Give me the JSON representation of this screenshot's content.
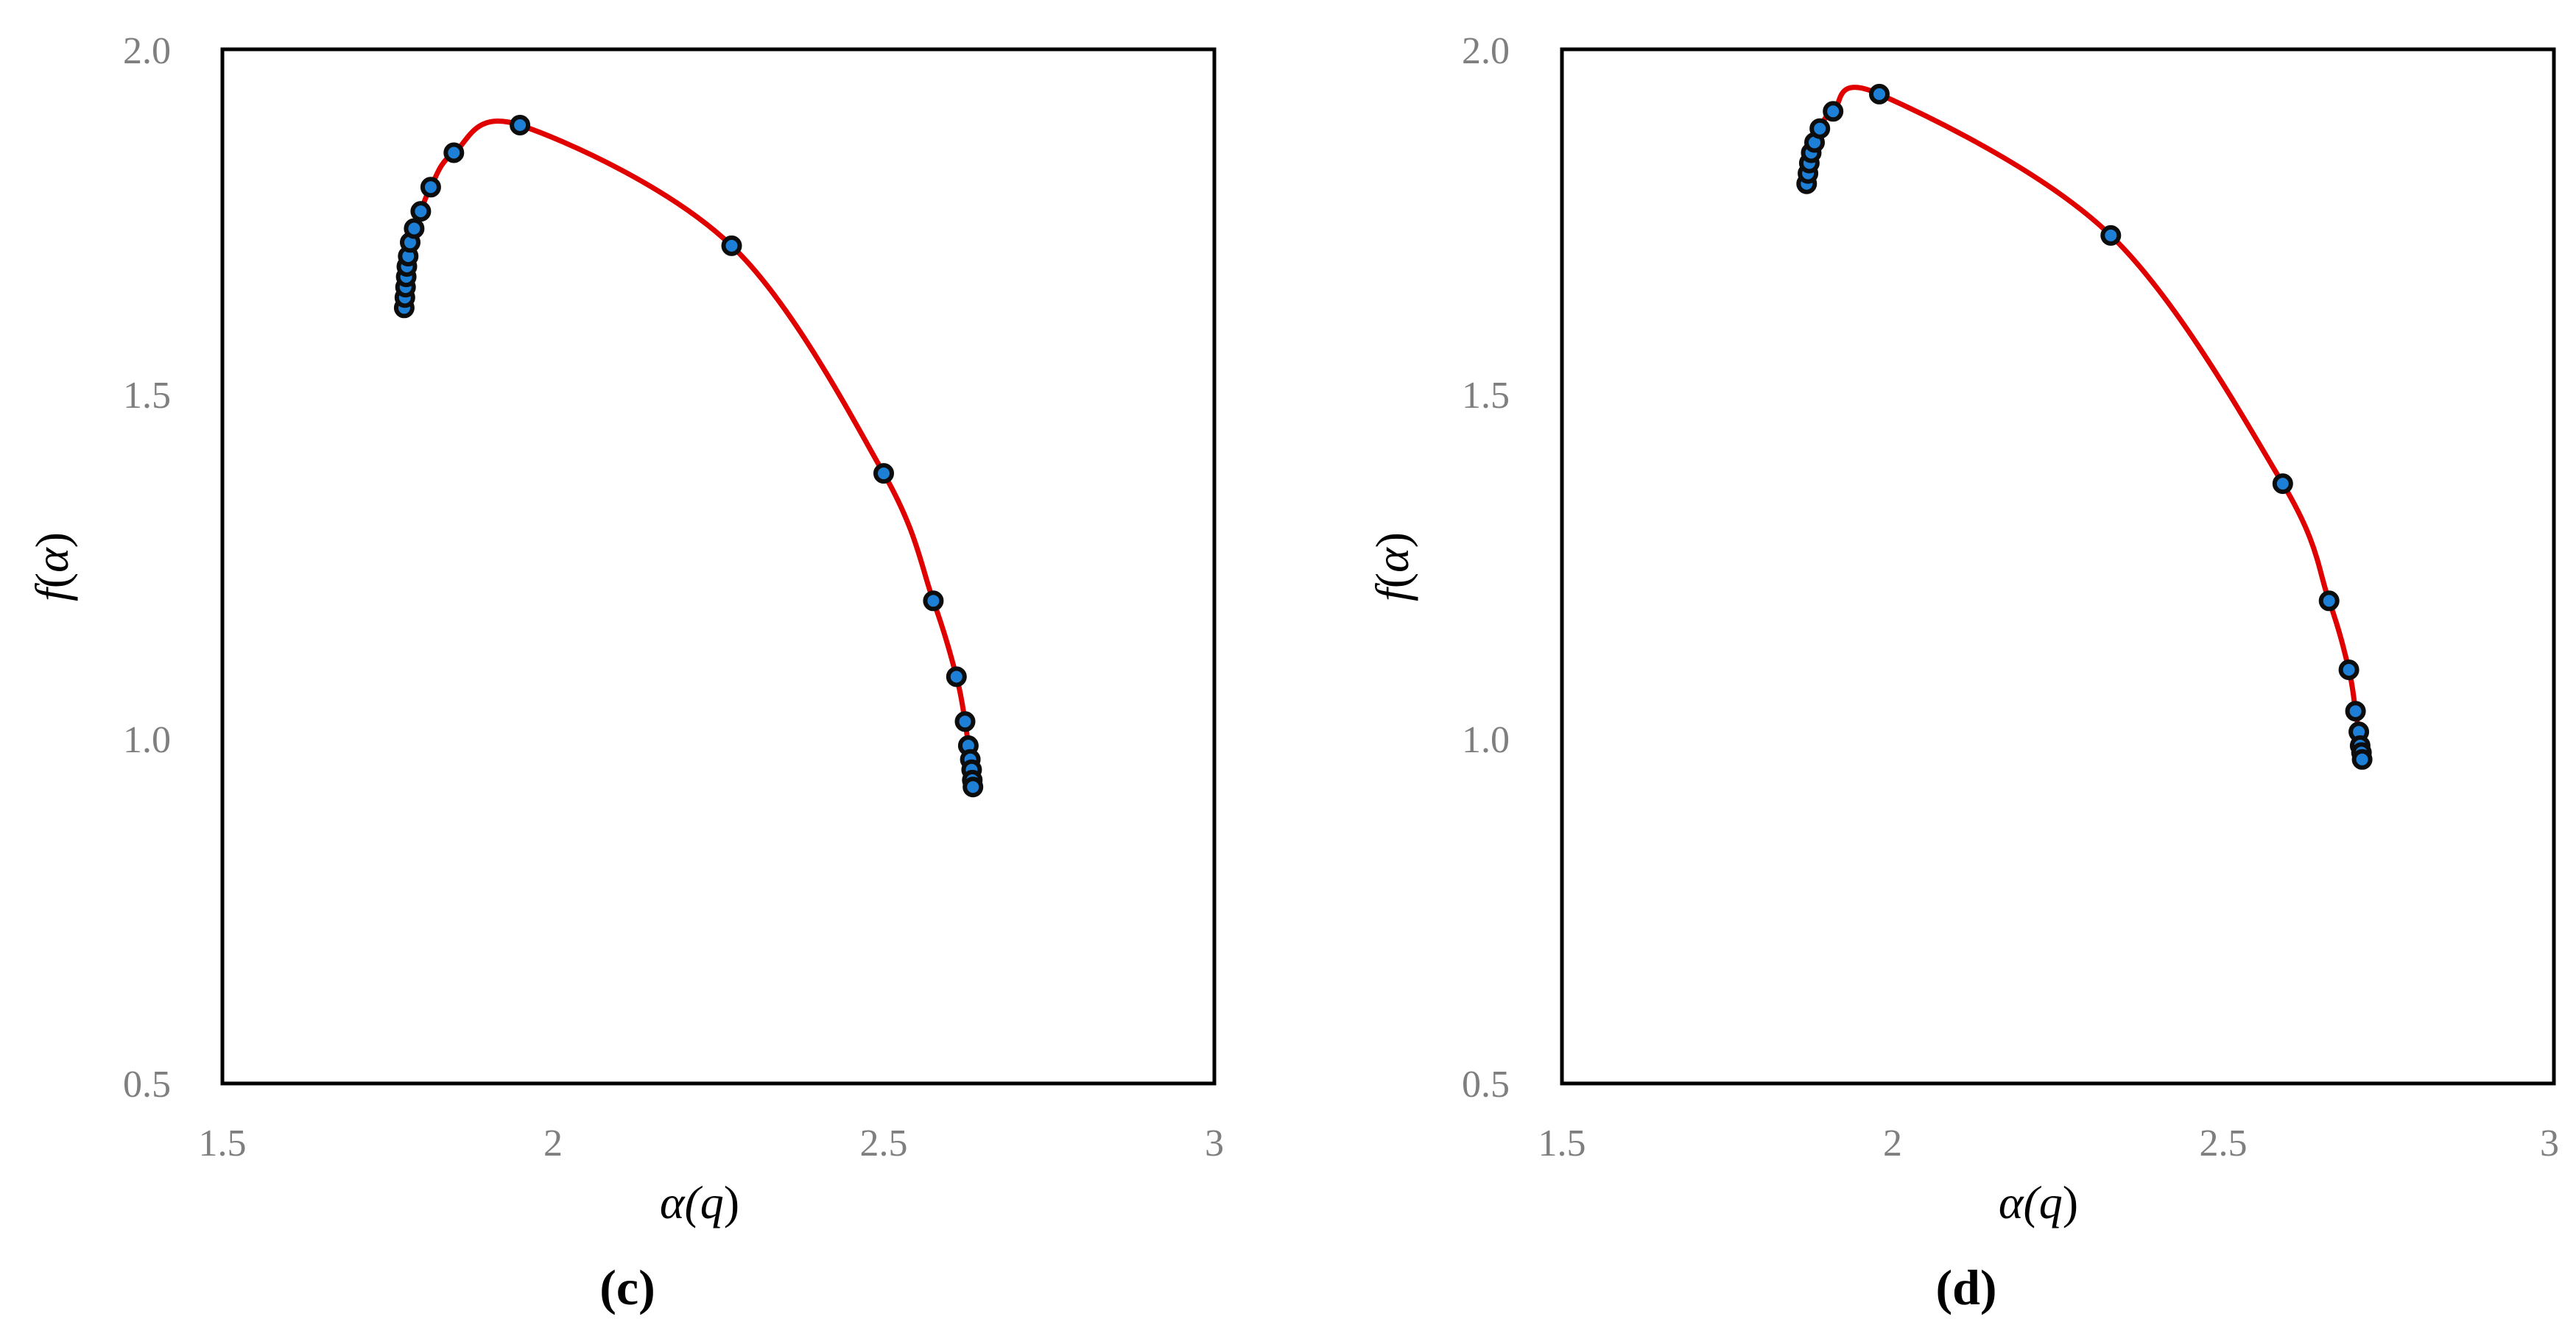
{
  "colors": {
    "curve": "#e00000",
    "marker_fill": "#1e7fd6",
    "marker_stroke": "#0d0d0d",
    "frame": "#000000",
    "tick_text": "#7f7f7f"
  },
  "chart_data": [
    {
      "type": "scatter",
      "panel_label": "(c)",
      "xlabel_parts": [
        "α(",
        "q",
        ")"
      ],
      "ylabel_parts": [
        "f",
        "(",
        "α",
        ")"
      ],
      "xlim": [
        1.5,
        3
      ],
      "ylim": [
        0.5,
        2.0
      ],
      "xticks": [
        "1.5",
        "2",
        "2.5",
        "3"
      ],
      "yticks": [
        "0.5",
        "1.0",
        "1.5",
        "2.0"
      ],
      "grid": false,
      "series": [
        {
          "points": [
            [
              1.775,
              1.625
            ],
            [
              1.776,
              1.64
            ],
            [
              1.777,
              1.655
            ],
            [
              1.778,
              1.67
            ],
            [
              1.779,
              1.685
            ],
            [
              1.781,
              1.7
            ],
            [
              1.784,
              1.72
            ],
            [
              1.79,
              1.74
            ],
            [
              1.8,
              1.765
            ],
            [
              1.815,
              1.8
            ],
            [
              1.85,
              1.85
            ],
            [
              1.95,
              1.89
            ],
            [
              2.27,
              1.715
            ],
            [
              2.5,
              1.385
            ],
            [
              2.575,
              1.2
            ],
            [
              2.61,
              1.09
            ],
            [
              2.623,
              1.025
            ],
            [
              2.628,
              0.99
            ],
            [
              2.631,
              0.97
            ],
            [
              2.633,
              0.955
            ],
            [
              2.634,
              0.94
            ],
            [
              2.635,
              0.93
            ]
          ]
        }
      ]
    },
    {
      "type": "scatter",
      "panel_label": "(d)",
      "xlabel_parts": [
        "α(",
        "q",
        ")"
      ],
      "ylabel_parts": [
        "f",
        "(",
        "α",
        ")"
      ],
      "xlim": [
        1.5,
        3
      ],
      "ylim": [
        0.5,
        2.0
      ],
      "xticks": [
        "1.5",
        "2",
        "2.5",
        "3"
      ],
      "yticks": [
        "0.5",
        "1.0",
        "1.5",
        "2.0"
      ],
      "grid": false,
      "series": [
        {
          "points": [
            [
              1.87,
              1.805
            ],
            [
              1.872,
              1.82
            ],
            [
              1.874,
              1.835
            ],
            [
              1.877,
              1.85
            ],
            [
              1.882,
              1.865
            ],
            [
              1.89,
              1.885
            ],
            [
              1.91,
              1.91
            ],
            [
              1.98,
              1.935
            ],
            [
              2.33,
              1.73
            ],
            [
              2.59,
              1.37
            ],
            [
              2.66,
              1.2
            ],
            [
              2.69,
              1.1
            ],
            [
              2.7,
              1.04
            ],
            [
              2.705,
              1.01
            ],
            [
              2.707,
              0.99
            ],
            [
              2.709,
              0.98
            ],
            [
              2.71,
              0.97
            ]
          ]
        }
      ]
    }
  ]
}
